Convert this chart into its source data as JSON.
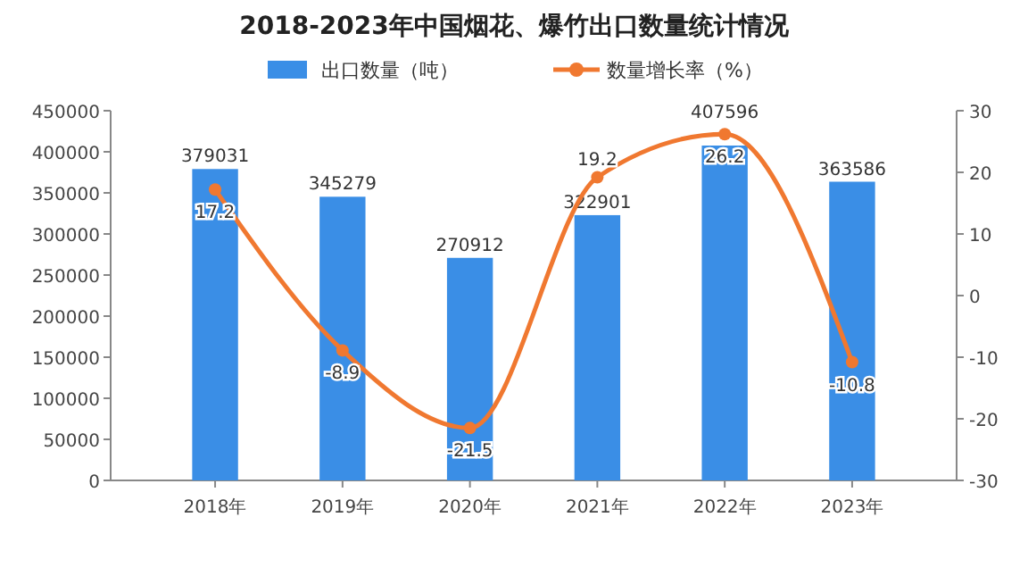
{
  "chart_data": {
    "type": "bar",
    "title": "2018-2023年中国烟花、爆竹出口数量统计情况",
    "categories": [
      "2018年",
      "2019年",
      "2020年",
      "2021年",
      "2022年",
      "2023年"
    ],
    "series": [
      {
        "name": "出口数量（吨）",
        "color": "#3a8ee6",
        "values": [
          379031,
          345279,
          270912,
          322901,
          407596,
          363586
        ]
      },
      {
        "name": "数量增长率（%）",
        "type": "line",
        "axis": "y2",
        "color": "#f07830",
        "values": [
          17.2,
          -8.9,
          -21.5,
          19.2,
          26.2,
          -10.8
        ]
      }
    ],
    "ylim": [
      0,
      450000
    ],
    "yticks": [
      0,
      50000,
      100000,
      150000,
      200000,
      250000,
      300000,
      350000,
      400000,
      450000
    ],
    "y2lim": [
      -30,
      30
    ],
    "y2ticks": [
      -30,
      -20,
      -10,
      0,
      10,
      20,
      30
    ],
    "data_labels": true,
    "legend": "top",
    "marker": "circle",
    "grid": false
  }
}
